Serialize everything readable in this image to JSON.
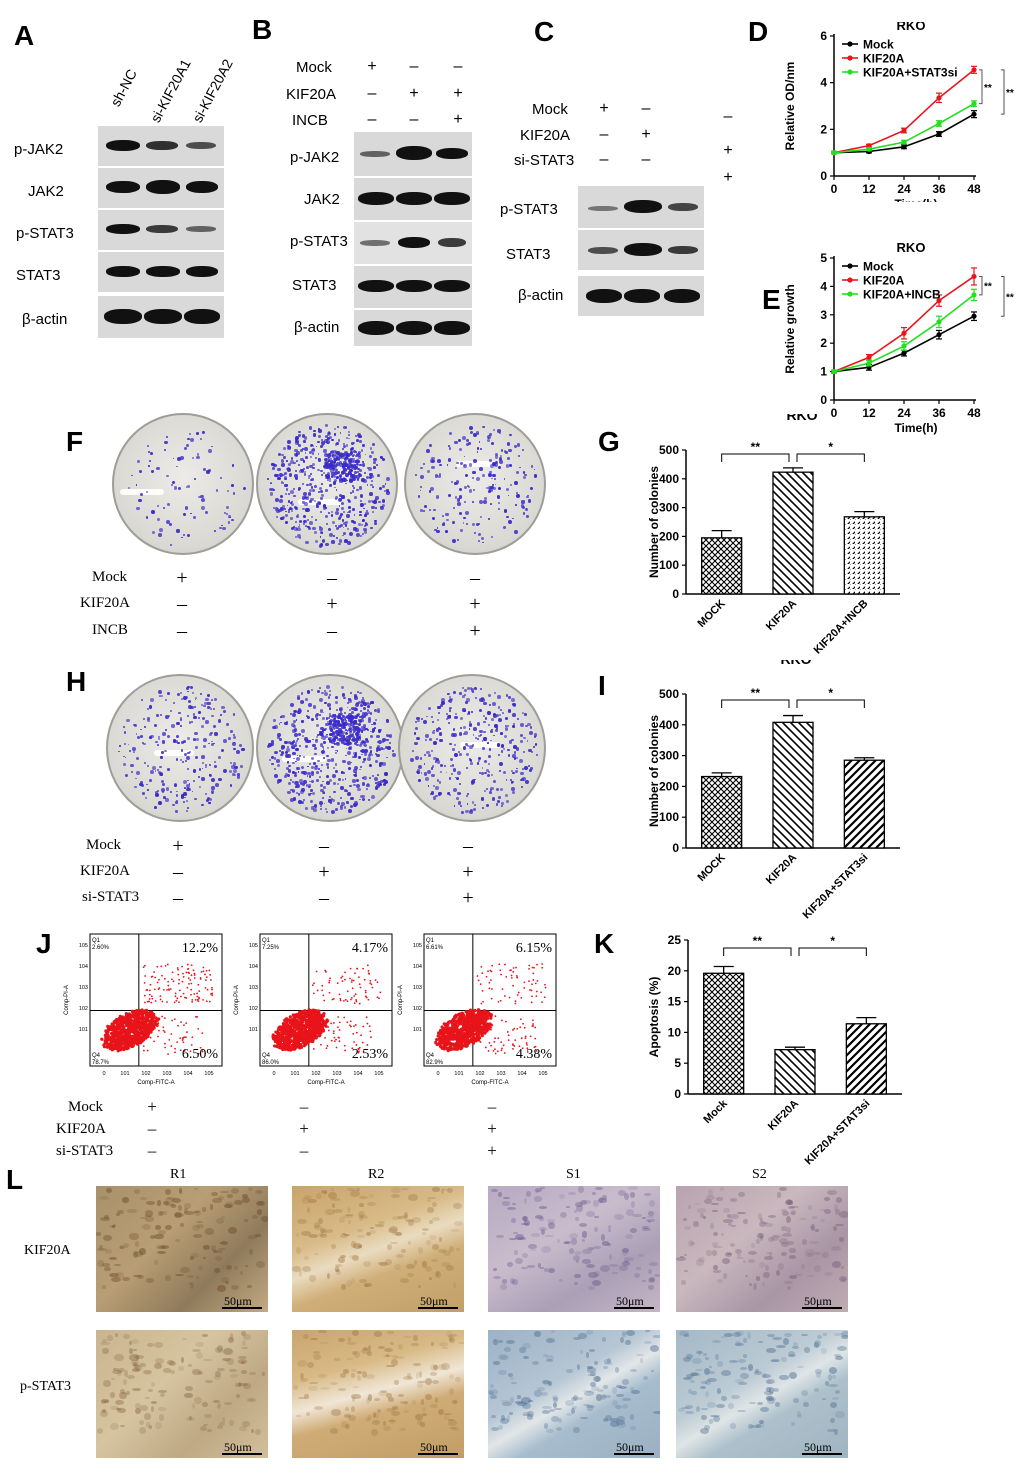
{
  "panels": {
    "A": {
      "letter": "A",
      "lanes": [
        "sh-NC",
        "si-KIF20A1",
        "si-KIF20A2"
      ],
      "rows": [
        "p-JAK2",
        "JAK2",
        "p-STAT3",
        "STAT3",
        "β-actin"
      ]
    },
    "B": {
      "letter": "B",
      "conditions": [
        {
          "label": "Mock",
          "signs": [
            "+",
            "–",
            "–"
          ]
        },
        {
          "label": "KIF20A",
          "signs": [
            "–",
            "+",
            "+"
          ]
        },
        {
          "label": "INCB",
          "signs": [
            "–",
            "–",
            "+"
          ]
        }
      ],
      "rows": [
        "p-JAK2",
        "JAK2",
        "p-STAT3",
        "STAT3",
        "β-actin"
      ]
    },
    "C": {
      "letter": "C",
      "conditions": [
        {
          "label": "Mock",
          "signs": [
            "+",
            "–",
            ""
          ]
        },
        {
          "label": "KIF20A",
          "signs": [
            "–",
            "+",
            "–"
          ]
        },
        {
          "label": "si-STAT3",
          "signs": [
            "–",
            "–",
            "+"
          ]
        }
      ],
      "extra_sign": "+",
      "rows": [
        "p-STAT3",
        "STAT3",
        "β-actin"
      ]
    },
    "D": {
      "letter": "D"
    },
    "E": {
      "letter": "E"
    },
    "F": {
      "letter": "F",
      "conditions": [
        {
          "label": "Mock",
          "signs": [
            "+",
            "–",
            "–"
          ]
        },
        {
          "label": "KIF20A",
          "signs": [
            "–",
            "+",
            "+"
          ]
        },
        {
          "label": "INCB",
          "signs": [
            "–",
            "–",
            "+"
          ]
        }
      ]
    },
    "G": {
      "letter": "G"
    },
    "H": {
      "letter": "H",
      "conditions": [
        {
          "label": "Mock",
          "signs": [
            "+",
            "–",
            "–"
          ]
        },
        {
          "label": "KIF20A",
          "signs": [
            "–",
            "+",
            "+"
          ]
        },
        {
          "label": "si-STAT3",
          "signs": [
            "–",
            "–",
            "+"
          ]
        }
      ]
    },
    "I": {
      "letter": "I"
    },
    "J": {
      "letter": "J",
      "plots": [
        {
          "q1": "2.60%",
          "q4": "78.7%",
          "upper_right": "12.2%",
          "lower_right": "6.50%"
        },
        {
          "q1": "7.25%",
          "q4": "86.0%",
          "upper_right": "4.17%",
          "lower_right": "2.53%"
        },
        {
          "q1": "6.61%",
          "q4": "82.9%",
          "upper_right": "6.15%",
          "lower_right": "4.38%"
        }
      ],
      "q1_label": "Q1",
      "q4_label": "Q4",
      "x_axis": "Comp-FITC-A",
      "y_axis": "Comp-PI-A",
      "conditions": [
        {
          "label": "Mock",
          "signs": [
            "+",
            "–",
            "–"
          ]
        },
        {
          "label": "KIF20A",
          "signs": [
            "–",
            "+",
            "+"
          ]
        },
        {
          "label": "si-STAT3",
          "signs": [
            "–",
            "–",
            "+"
          ]
        }
      ]
    },
    "K": {
      "letter": "K"
    },
    "L": {
      "letter": "L",
      "columns": [
        "R1",
        "R2",
        "S1",
        "S2"
      ],
      "rows": [
        "KIF20A",
        "p-STAT3"
      ],
      "scale_label": "50μm"
    }
  },
  "chart_data": [
    {
      "id": "D",
      "type": "line",
      "title": "RKO",
      "xlabel": "Time(h)",
      "ylabel": "Relative OD/nm",
      "x": [
        0,
        12,
        24,
        36,
        48
      ],
      "xlim": [
        0,
        48
      ],
      "ylim": [
        0,
        6
      ],
      "yticks": [
        0,
        2,
        4,
        6
      ],
      "series": [
        {
          "name": "Mock",
          "color": "#000000",
          "values": [
            1.0,
            1.05,
            1.25,
            1.8,
            2.65
          ],
          "errors": [
            0.05,
            0.06,
            0.08,
            0.1,
            0.15
          ]
        },
        {
          "name": "KIF20A",
          "color": "#e8161c",
          "values": [
            1.0,
            1.3,
            1.95,
            3.35,
            4.55
          ],
          "errors": [
            0.05,
            0.06,
            0.1,
            0.2,
            0.15
          ]
        },
        {
          "name": "KIF20A+STAT3si",
          "color": "#22e01f",
          "values": [
            1.0,
            1.15,
            1.45,
            2.25,
            3.1
          ],
          "errors": [
            0.05,
            0.06,
            0.08,
            0.12,
            0.12
          ]
        }
      ],
      "significance": [
        "**",
        "**"
      ],
      "legend": "top-left"
    },
    {
      "id": "E",
      "type": "line",
      "title": "RKO",
      "xlabel": "Time(h)",
      "ylabel": "Relative growth",
      "x": [
        0,
        12,
        24,
        36,
        48
      ],
      "xlim": [
        0,
        48
      ],
      "ylim": [
        0,
        5
      ],
      "yticks": [
        0,
        1,
        2,
        3,
        4,
        5
      ],
      "series": [
        {
          "name": "Mock",
          "color": "#000000",
          "values": [
            1.0,
            1.15,
            1.65,
            2.3,
            2.95
          ],
          "errors": [
            0.05,
            0.1,
            0.1,
            0.15,
            0.15
          ]
        },
        {
          "name": "KIF20A",
          "color": "#e8161c",
          "values": [
            1.0,
            1.5,
            2.35,
            3.5,
            4.35
          ],
          "errors": [
            0.05,
            0.1,
            0.2,
            0.2,
            0.3
          ]
        },
        {
          "name": "KIF20A+INCB",
          "color": "#22e01f",
          "values": [
            1.0,
            1.3,
            1.9,
            2.75,
            3.7
          ],
          "errors": [
            0.05,
            0.1,
            0.15,
            0.2,
            0.2
          ]
        }
      ],
      "significance": [
        "**",
        "**"
      ],
      "legend": "top-left"
    },
    {
      "id": "G",
      "type": "bar",
      "title": "RKO",
      "ylabel": "Number of colonies",
      "categories": [
        "MOCK",
        "KIF20A",
        "KIF20A+INCB"
      ],
      "values": [
        195,
        423,
        268
      ],
      "errors": [
        25,
        15,
        18
      ],
      "ylim": [
        0,
        500
      ],
      "yticks": [
        0,
        100,
        200,
        300,
        400,
        500
      ],
      "significance": [
        {
          "between": [
            0,
            1
          ],
          "label": "**"
        },
        {
          "between": [
            1,
            2
          ],
          "label": "*"
        }
      ]
    },
    {
      "id": "I",
      "type": "bar",
      "title": "RKO",
      "ylabel": "Number of colonies",
      "categories": [
        "MOCK",
        "KIF20A",
        "KIF20A+STAT3si"
      ],
      "values": [
        232,
        408,
        285
      ],
      "errors": [
        12,
        22,
        8
      ],
      "ylim": [
        0,
        500
      ],
      "yticks": [
        0,
        100,
        200,
        300,
        400,
        500
      ],
      "significance": [
        {
          "between": [
            0,
            1
          ],
          "label": "**"
        },
        {
          "between": [
            1,
            2
          ],
          "label": "*"
        }
      ]
    },
    {
      "id": "K",
      "type": "bar",
      "title": "",
      "ylabel": "Apoptosis (%)",
      "categories": [
        "Mock",
        "KIF20A",
        "KIF20A+STAT3si"
      ],
      "values": [
        19.6,
        7.2,
        11.4
      ],
      "errors": [
        1.1,
        0.4,
        1.0
      ],
      "ylim": [
        0,
        25
      ],
      "yticks": [
        0,
        5,
        10,
        15,
        20,
        25
      ],
      "significance": [
        {
          "between": [
            0,
            1
          ],
          "label": "**"
        },
        {
          "between": [
            1,
            2
          ],
          "label": "*"
        }
      ]
    }
  ]
}
